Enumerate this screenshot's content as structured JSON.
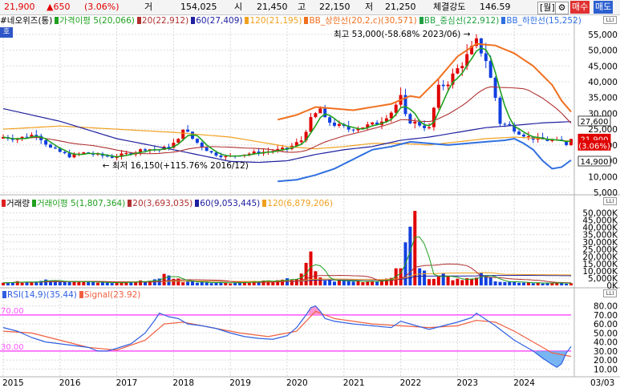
{
  "quote": {
    "price": "21,900",
    "change": "▲650",
    "change_pct": "(3.06%)",
    "volume_label": "거",
    "volume": "154,025",
    "open_label": "시",
    "open": "21,450",
    "high_label": "고",
    "high": "22,150",
    "low_label": "저",
    "low": "21,250",
    "strength_label": "체결강도",
    "strength": "146.59",
    "period_button": "[월]",
    "gear_button": "⚙",
    "buy_button": "매수",
    "sell_button": "매도"
  },
  "colors": {
    "up": "#e00000",
    "down": "#1040e0",
    "ma5": "#20a020",
    "ma20": "#b03030",
    "ma60": "#2020a0",
    "ma120": "#f0a020",
    "bb_upper": "#f07020",
    "bb_mid": "#20a040",
    "bb_lower": "#3070e0",
    "rsi": "#3060e0",
    "signal": "#f06040",
    "rsi_band": "#ff55ff"
  },
  "price_legend": {
    "name": "#네오위즈(통)",
    "items": [
      {
        "text": "가격이평 5(20,066)",
        "color": "#20a020"
      },
      {
        "text": "20(22,912)",
        "color": "#b03030"
      },
      {
        "text": "60(27,409)",
        "color": "#2020a0"
      },
      {
        "text": "120(21,195)",
        "color": "#f0a020"
      },
      {
        "text": "BB_상한선(20,2,c)(30,571)",
        "color": "#f07020"
      },
      {
        "text": "BB_중심선(22,912)",
        "color": "#20a040"
      },
      {
        "text": "BB_하한선(15,252)",
        "color": "#3070e0"
      }
    ],
    "chip": "호"
  },
  "volume_legend": {
    "name": "거래량",
    "items": [
      {
        "text": "거래이평 5(1,807,364)",
        "color": "#20a020"
      },
      {
        "text": "20(3,693,035)",
        "color": "#b03030"
      },
      {
        "text": "60(9,053,445)",
        "color": "#2020a0"
      },
      {
        "text": "120(6,879,206)",
        "color": "#f0a020"
      }
    ]
  },
  "rsi_legend": {
    "items": [
      {
        "text": "RSI(14,9)(35.44)",
        "color": "#3060e0"
      },
      {
        "text": "Signal(23.92)",
        "color": "#f06040"
      }
    ]
  },
  "chart_data": {
    "type": "candlestick",
    "x_labels": [
      "2015",
      "2016",
      "2017",
      "2018",
      "2019",
      "2020",
      "2021",
      "2022",
      "2023",
      "2024",
      "03/03"
    ],
    "price_axis": {
      "ticks": [
        "55,000",
        "50,000",
        "45,000",
        "40,000",
        "35,000",
        "30,000",
        "25,000",
        "20,000",
        "15,000",
        "10,000",
        "5,000"
      ],
      "range": [
        5000,
        57000
      ]
    },
    "price_tags": [
      {
        "value": "27,600",
        "price": 27600,
        "style": "outline"
      },
      {
        "value": "21,900",
        "price": 21900,
        "style": "current"
      },
      {
        "value": "(3.06%)",
        "price": 19900,
        "style": "current-sub"
      },
      {
        "value": "14,900",
        "price": 14900,
        "style": "outline"
      }
    ],
    "annotations": [
      {
        "text": "최고 53,000(-58.68% 2023/06)",
        "month": 100,
        "price": 53000
      },
      {
        "text": "최저 16,150(+115.76% 2016/12)",
        "month": 23,
        "price": 16150
      }
    ],
    "volume_axis": {
      "ticks": [
        "50,000K",
        "45,000K",
        "40,000K",
        "35,000K",
        "30,000K",
        "25,000K",
        "20,000K",
        "15,000K",
        "10,000K",
        "5,000K",
        "0K"
      ],
      "range": [
        0,
        52000
      ]
    },
    "rsi_axis": {
      "ticks": [
        "80.00",
        "70.00",
        "60.00",
        "50.00",
        "40.00",
        "30.00",
        "20.00",
        "10.00"
      ],
      "range": [
        5,
        85
      ],
      "bands": [
        70,
        30
      ],
      "band_labels": [
        "70.00",
        "30.00"
      ]
    },
    "price_keypoints": [
      [
        0,
        22500
      ],
      [
        3,
        22000
      ],
      [
        7,
        23500
      ],
      [
        10,
        19000
      ],
      [
        14,
        16500
      ],
      [
        17,
        17500
      ],
      [
        20,
        16800
      ],
      [
        23,
        16150
      ],
      [
        27,
        17500
      ],
      [
        30,
        18800
      ],
      [
        33,
        18500
      ],
      [
        35,
        19500
      ],
      [
        37,
        21500
      ],
      [
        38,
        25500
      ],
      [
        40,
        22000
      ],
      [
        42,
        19500
      ],
      [
        44,
        17500
      ],
      [
        47,
        16200
      ],
      [
        50,
        17000
      ],
      [
        53,
        17500
      ],
      [
        57,
        18200
      ],
      [
        60,
        18800
      ],
      [
        63,
        21500
      ],
      [
        64,
        24800
      ],
      [
        65,
        28000
      ],
      [
        67,
        31500
      ],
      [
        68,
        28000
      ],
      [
        70,
        26500
      ],
      [
        73,
        25000
      ],
      [
        76,
        25800
      ],
      [
        79,
        26800
      ],
      [
        82,
        30500
      ],
      [
        84,
        35000
      ],
      [
        85,
        29000
      ],
      [
        86,
        27500
      ],
      [
        88,
        26500
      ],
      [
        90,
        25200
      ],
      [
        92,
        38000
      ],
      [
        94,
        40000
      ],
      [
        96,
        44000
      ],
      [
        98,
        48000
      ],
      [
        100,
        52500
      ],
      [
        102,
        47000
      ],
      [
        104,
        35000
      ],
      [
        105,
        27000
      ],
      [
        107,
        26000
      ],
      [
        109,
        24000
      ],
      [
        111,
        22500
      ],
      [
        113,
        21800
      ],
      [
        115,
        21500
      ],
      [
        118,
        21000
      ],
      [
        119,
        20300
      ],
      [
        120,
        21900
      ]
    ],
    "volume_keypoints": [
      [
        0,
        1800
      ],
      [
        6,
        2800
      ],
      [
        9,
        4500
      ],
      [
        13,
        2800
      ],
      [
        18,
        2200
      ],
      [
        24,
        1800
      ],
      [
        28,
        2600
      ],
      [
        31,
        3200
      ],
      [
        34,
        6800
      ],
      [
        36,
        5500
      ],
      [
        38,
        2800
      ],
      [
        42,
        2400
      ],
      [
        48,
        1800
      ],
      [
        55,
        3000
      ],
      [
        58,
        2800
      ],
      [
        62,
        5000
      ],
      [
        64,
        12500
      ],
      [
        65,
        21000
      ],
      [
        66,
        8000
      ],
      [
        68,
        3500
      ],
      [
        72,
        3000
      ],
      [
        76,
        2900
      ],
      [
        80,
        3600
      ],
      [
        84,
        11000
      ],
      [
        85,
        35000
      ],
      [
        86,
        48000
      ],
      [
        87,
        40500
      ],
      [
        88,
        14000
      ],
      [
        90,
        4000
      ],
      [
        92,
        5500
      ],
      [
        93,
        11000
      ],
      [
        95,
        5000
      ],
      [
        97,
        3000
      ],
      [
        100,
        7500
      ],
      [
        101,
        11000
      ],
      [
        103,
        4500
      ],
      [
        106,
        2800
      ],
      [
        110,
        2200
      ],
      [
        114,
        1800
      ],
      [
        120,
        1200
      ]
    ],
    "rsi_keypoints": [
      [
        0,
        56
      ],
      [
        3,
        52
      ],
      [
        6,
        45
      ],
      [
        9,
        40
      ],
      [
        12,
        38
      ],
      [
        15,
        36
      ],
      [
        18,
        34
      ],
      [
        20,
        30
      ],
      [
        22,
        30
      ],
      [
        24,
        33
      ],
      [
        27,
        38
      ],
      [
        30,
        50
      ],
      [
        32,
        64
      ],
      [
        33,
        72
      ],
      [
        35,
        68
      ],
      [
        37,
        66
      ],
      [
        39,
        60
      ],
      [
        42,
        58
      ],
      [
        45,
        55
      ],
      [
        48,
        50
      ],
      [
        51,
        46
      ],
      [
        54,
        44
      ],
      [
        57,
        43
      ],
      [
        60,
        47
      ],
      [
        62,
        56
      ],
      [
        64,
        70
      ],
      [
        65,
        78
      ],
      [
        66,
        80
      ],
      [
        67,
        74
      ],
      [
        68,
        66
      ],
      [
        70,
        63
      ],
      [
        74,
        60
      ],
      [
        78,
        58
      ],
      [
        82,
        56
      ],
      [
        84,
        63
      ],
      [
        86,
        60
      ],
      [
        88,
        57
      ],
      [
        90,
        54
      ],
      [
        93,
        58
      ],
      [
        96,
        62
      ],
      [
        99,
        67
      ],
      [
        100,
        72
      ],
      [
        102,
        65
      ],
      [
        104,
        58
      ],
      [
        106,
        50
      ],
      [
        108,
        42
      ],
      [
        110,
        36
      ],
      [
        112,
        30
      ],
      [
        114,
        22
      ],
      [
        116,
        15
      ],
      [
        117,
        12
      ],
      [
        118,
        16
      ],
      [
        119,
        28
      ],
      [
        120,
        35
      ]
    ],
    "signal_keypoints": [
      [
        0,
        52
      ],
      [
        6,
        50
      ],
      [
        12,
        42
      ],
      [
        18,
        34
      ],
      [
        24,
        31
      ],
      [
        30,
        42
      ],
      [
        34,
        60
      ],
      [
        38,
        62
      ],
      [
        44,
        56
      ],
      [
        50,
        50
      ],
      [
        56,
        46
      ],
      [
        62,
        52
      ],
      [
        66,
        74
      ],
      [
        70,
        66
      ],
      [
        78,
        60
      ],
      [
        84,
        58
      ],
      [
        90,
        56
      ],
      [
        96,
        58
      ],
      [
        100,
        64
      ],
      [
        104,
        62
      ],
      [
        108,
        52
      ],
      [
        112,
        40
      ],
      [
        116,
        28
      ],
      [
        120,
        24
      ]
    ],
    "ma60_keypoints": [
      [
        0,
        31500
      ],
      [
        12,
        27500
      ],
      [
        24,
        22000
      ],
      [
        36,
        18500
      ],
      [
        48,
        14800
      ],
      [
        54,
        14500
      ],
      [
        60,
        15000
      ],
      [
        66,
        17000
      ],
      [
        72,
        18500
      ],
      [
        78,
        19500
      ],
      [
        84,
        21500
      ],
      [
        90,
        22500
      ],
      [
        96,
        24000
      ],
      [
        102,
        25500
      ],
      [
        108,
        26200
      ],
      [
        114,
        27000
      ],
      [
        120,
        27400
      ]
    ],
    "ma120_keypoints": [
      [
        0,
        25000
      ],
      [
        12,
        26000
      ],
      [
        24,
        25000
      ],
      [
        36,
        24000
      ],
      [
        48,
        22500
      ],
      [
        54,
        21000
      ],
      [
        60,
        19500
      ],
      [
        66,
        18800
      ],
      [
        72,
        19500
      ],
      [
        78,
        20500
      ],
      [
        84,
        20500
      ],
      [
        90,
        20000
      ],
      [
        96,
        21000
      ],
      [
        102,
        22000
      ],
      [
        108,
        22500
      ],
      [
        114,
        22000
      ],
      [
        120,
        21200
      ]
    ],
    "bb_upper_keypoints": [
      [
        58,
        28000
      ],
      [
        62,
        29500
      ],
      [
        66,
        32000
      ],
      [
        70,
        31500
      ],
      [
        74,
        31000
      ],
      [
        78,
        32000
      ],
      [
        82,
        33000
      ],
      [
        86,
        35500
      ],
      [
        88,
        35000
      ],
      [
        92,
        41000
      ],
      [
        96,
        48000
      ],
      [
        100,
        52000
      ],
      [
        104,
        51500
      ],
      [
        108,
        49000
      ],
      [
        112,
        45000
      ],
      [
        116,
        39000
      ],
      [
        118,
        34000
      ],
      [
        120,
        30500
      ]
    ],
    "bb_lower_keypoints": [
      [
        58,
        8500
      ],
      [
        62,
        9000
      ],
      [
        66,
        10500
      ],
      [
        70,
        12500
      ],
      [
        74,
        15500
      ],
      [
        78,
        18500
      ],
      [
        82,
        19500
      ],
      [
        86,
        21000
      ],
      [
        90,
        20500
      ],
      [
        94,
        20000
      ],
      [
        98,
        20500
      ],
      [
        102,
        21000
      ],
      [
        106,
        21500
      ],
      [
        108,
        22000
      ],
      [
        110,
        20500
      ],
      [
        112,
        18500
      ],
      [
        114,
        15000
      ],
      [
        116,
        12500
      ],
      [
        118,
        13000
      ],
      [
        120,
        15200
      ]
    ]
  }
}
